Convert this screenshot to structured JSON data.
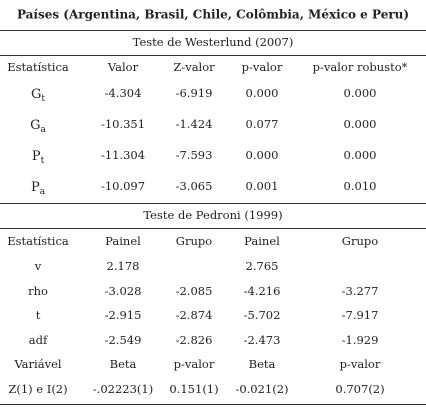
{
  "title": "Países (Argentina, Brasil, Chile, Colômbia, México e Peru)",
  "westerlund": {
    "title": "Teste de Westerlund (2007)",
    "header": [
      "Estatística",
      "Valor",
      "Z-valor",
      "p-valor",
      "p-valor robusto*"
    ],
    "rows": [
      [
        {
          "main": "G",
          "sub": "t"
        },
        "-4.304",
        "-6.919",
        "0.000",
        "0.000"
      ],
      [
        {
          "main": "G",
          "sub": "a"
        },
        "-10.351",
        "-1.424",
        "0.077",
        "0.000"
      ],
      [
        {
          "main": "P",
          "sub": "t"
        },
        "-11.304",
        "-7.593",
        "0.000",
        "0.000"
      ],
      [
        {
          "main": "P",
          "sub": "a"
        },
        "-10.097",
        "-3.065",
        "0.001",
        "0.010"
      ]
    ]
  },
  "pedroni": {
    "title": "Teste de Pedroni (1999)",
    "header": [
      "Estatística",
      "Painel",
      "Grupo",
      "Painel",
      "Grupo"
    ],
    "rows": [
      [
        "v",
        "2.178",
        null,
        "2.765",
        null
      ],
      [
        "rho",
        "-3.028",
        "-2.085",
        "-4.216",
        "-3.277"
      ],
      [
        "t",
        "-2.915",
        "-2.874",
        "-5.702",
        "-7.917"
      ],
      [
        "adf",
        "-2.549",
        "-2.826",
        "-2.473",
        "-1.929"
      ],
      [
        "Variável",
        "Beta",
        "p-valor",
        "Beta",
        "p-valor"
      ],
      [
        "Z(1) e I(2)",
        "-.02223(1)",
        "0.151(1)",
        "-0.021(2)",
        "0.707(2)"
      ]
    ]
  }
}
